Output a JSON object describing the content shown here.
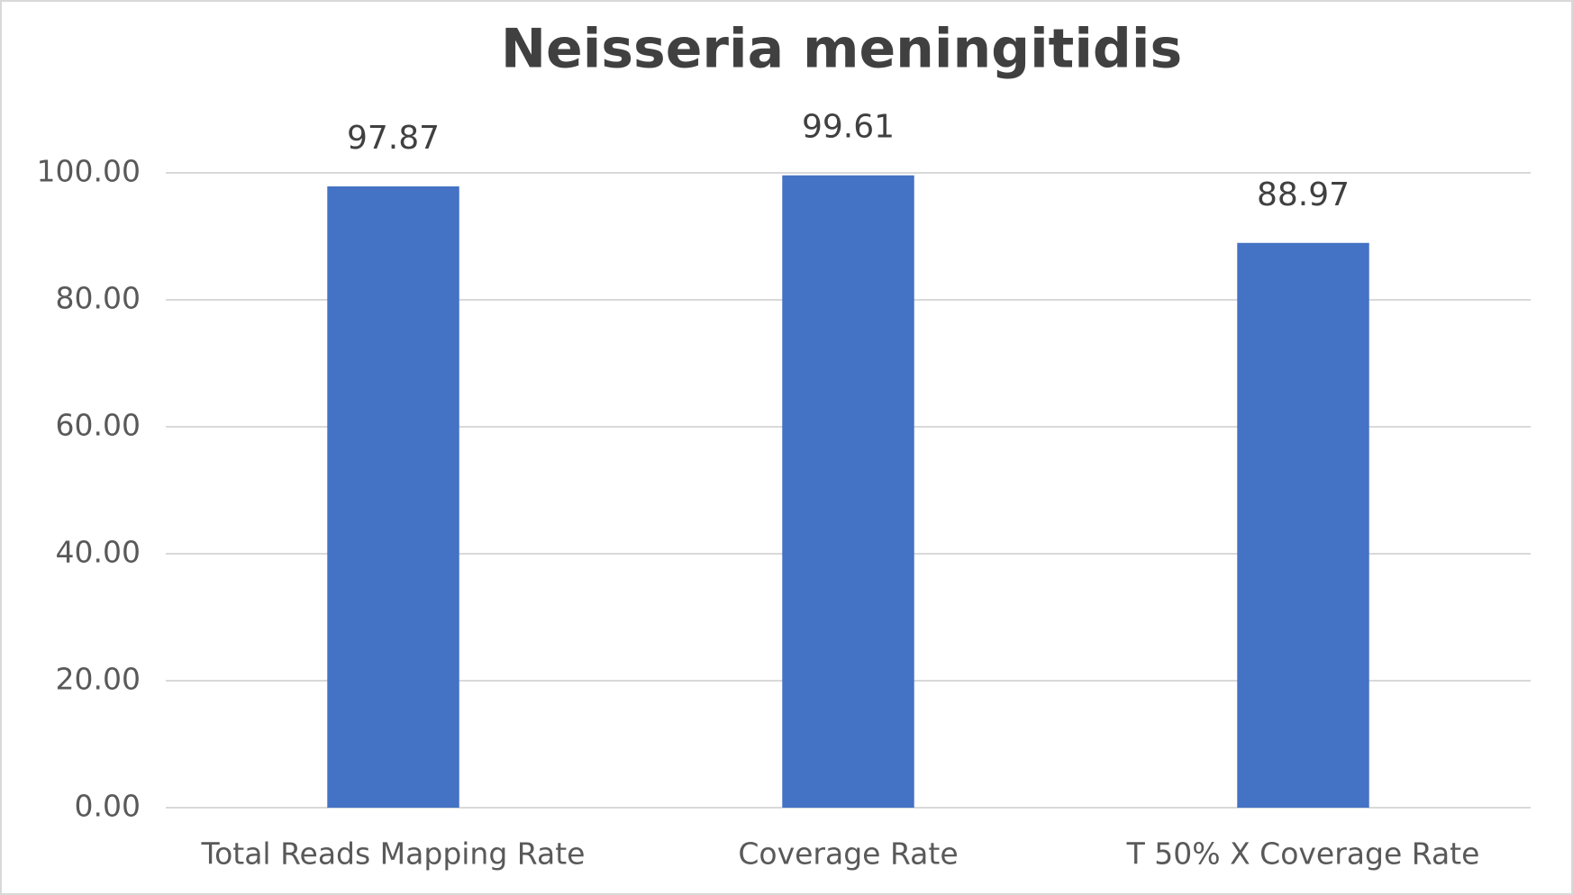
{
  "chart_data": {
    "type": "bar",
    "title": "Neisseria meningitidis",
    "categories": [
      "Total Reads Mapping Rate",
      "Coverage Rate",
      "T 50% X Coverage Rate"
    ],
    "values": [
      97.87,
      99.61,
      88.97
    ],
    "color": "#4472c4",
    "ylim": [
      0,
      100
    ],
    "yticks": [
      {
        "value": 0,
        "label": "0.00"
      },
      {
        "value": 20,
        "label": "20.00"
      },
      {
        "value": 40,
        "label": "40.00"
      },
      {
        "value": 60,
        "label": "60.00"
      },
      {
        "value": 80,
        "label": "80.00"
      },
      {
        "value": 100,
        "label": "100.00"
      }
    ],
    "grid": true
  }
}
